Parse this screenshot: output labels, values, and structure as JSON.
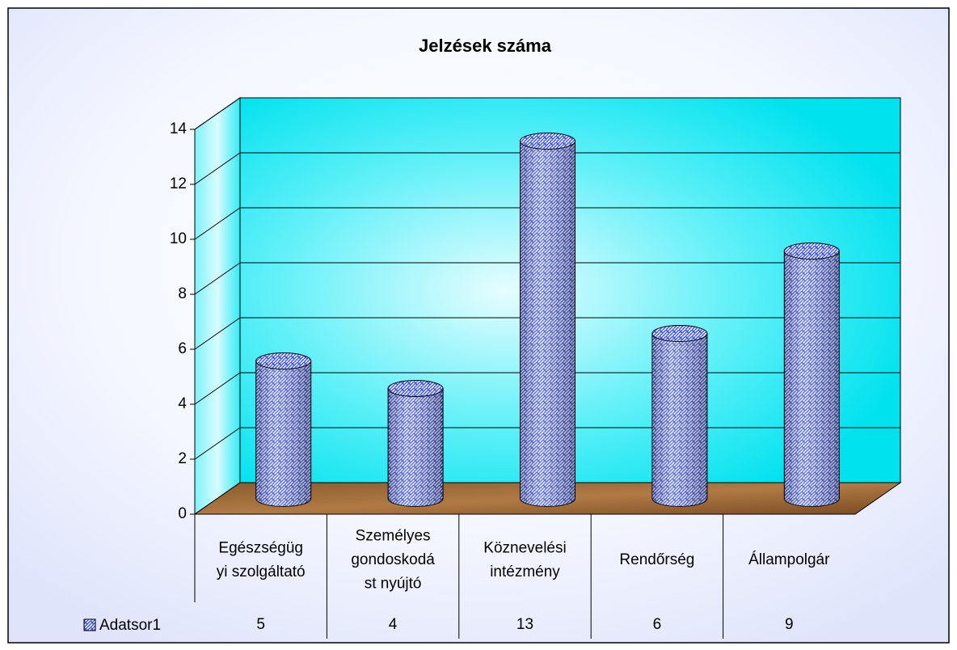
{
  "chart_data": {
    "type": "cylinder-bar",
    "title": "Jelzések száma",
    "categories": [
      [
        "Egészségüg",
        "yi szolgáltató"
      ],
      [
        "Személyes",
        "gondoskodá",
        "st nyújtó"
      ],
      [
        "Köznevelési",
        "intézmény"
      ],
      [
        "Rendőrség"
      ],
      [
        "Állampolgár"
      ]
    ],
    "series": [
      {
        "name": "Adatsor1",
        "color": "#3a4fd0",
        "values": [
          5,
          4,
          13,
          6,
          9
        ]
      }
    ],
    "ylim": [
      0,
      14
    ],
    "yticks": [
      0,
      2,
      4,
      6,
      8,
      10,
      12,
      14
    ],
    "grid": true,
    "data_table": true
  }
}
